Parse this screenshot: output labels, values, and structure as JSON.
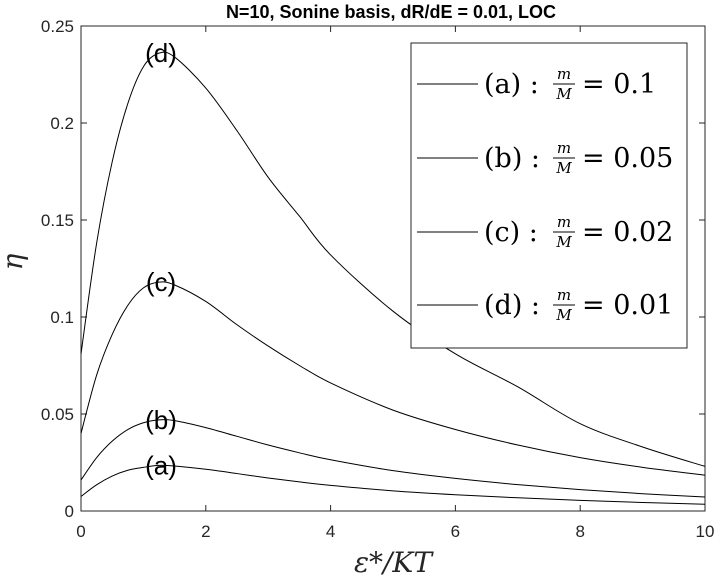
{
  "chart_data": {
    "type": "line",
    "title": "N=10, Sonine basis, dR/dE = 0.01, LOC",
    "xlabel": "ε*/KT",
    "ylabel": "η",
    "xlim": [
      0,
      10
    ],
    "ylim": [
      0,
      0.25
    ],
    "xticks": [
      "0",
      "2",
      "4",
      "6",
      "8",
      "10"
    ],
    "yticks": [
      "0",
      "0.05",
      "0.1",
      "0.15",
      "0.2",
      "0.25"
    ],
    "grid": false,
    "legend_position": "top-right",
    "series": [
      {
        "name": "(a) : m/M = 0.1",
        "label": "(a)",
        "legend_prefix": "(a) :",
        "legend_value": "= 0.1",
        "points": [
          [
            0,
            0.0075
          ],
          [
            0.25,
            0.0135
          ],
          [
            0.5,
            0.018
          ],
          [
            0.75,
            0.021
          ],
          [
            1.0,
            0.0225
          ],
          [
            1.25,
            0.0235
          ],
          [
            1.5,
            0.0232
          ],
          [
            2.0,
            0.0215
          ],
          [
            2.5,
            0.0193
          ],
          [
            3.0,
            0.017
          ],
          [
            3.5,
            0.015
          ],
          [
            4.0,
            0.0132
          ],
          [
            5.0,
            0.0104
          ],
          [
            6.0,
            0.0084
          ],
          [
            7.0,
            0.0068
          ],
          [
            8.0,
            0.0055
          ],
          [
            9.0,
            0.0044
          ],
          [
            10.0,
            0.0035
          ]
        ]
      },
      {
        "name": "(b) : m/M = 0.05",
        "label": "(b)",
        "legend_prefix": "(b) :",
        "legend_value": "= 0.05",
        "points": [
          [
            0,
            0.016
          ],
          [
            0.25,
            0.0275
          ],
          [
            0.5,
            0.036
          ],
          [
            0.75,
            0.042
          ],
          [
            1.0,
            0.0455
          ],
          [
            1.25,
            0.047
          ],
          [
            1.5,
            0.0466
          ],
          [
            2.0,
            0.043
          ],
          [
            2.5,
            0.0385
          ],
          [
            3.0,
            0.034
          ],
          [
            3.5,
            0.03
          ],
          [
            4.0,
            0.0264
          ],
          [
            5.0,
            0.0208
          ],
          [
            6.0,
            0.0168
          ],
          [
            7.0,
            0.0136
          ],
          [
            8.0,
            0.011
          ],
          [
            9.0,
            0.0089
          ],
          [
            10.0,
            0.0072
          ]
        ]
      },
      {
        "name": "(c) : m/M = 0.02",
        "label": "(c)",
        "legend_prefix": "(c) :",
        "legend_value": "= 0.02",
        "points": [
          [
            0,
            0.04
          ],
          [
            0.25,
            0.07
          ],
          [
            0.5,
            0.091
          ],
          [
            0.75,
            0.106
          ],
          [
            1.0,
            0.115
          ],
          [
            1.25,
            0.118
          ],
          [
            1.5,
            0.1165
          ],
          [
            2.0,
            0.108
          ],
          [
            2.5,
            0.096
          ],
          [
            3.0,
            0.085
          ],
          [
            3.5,
            0.075
          ],
          [
            4.0,
            0.066
          ],
          [
            5.0,
            0.052
          ],
          [
            6.0,
            0.042
          ],
          [
            7.0,
            0.034
          ],
          [
            8.0,
            0.0275
          ],
          [
            9.0,
            0.0225
          ],
          [
            10.0,
            0.0185
          ]
        ]
      },
      {
        "name": "(d) : m/M = 0.01",
        "label": "(d)",
        "legend_prefix": "(d) :",
        "legend_value": "= 0.01",
        "points": [
          [
            0,
            0.081
          ],
          [
            0.25,
            0.138
          ],
          [
            0.5,
            0.18
          ],
          [
            0.75,
            0.21
          ],
          [
            1.0,
            0.229
          ],
          [
            1.25,
            0.236
          ],
          [
            1.5,
            0.234
          ],
          [
            2.0,
            0.218
          ],
          [
            2.5,
            0.196
          ],
          [
            3.0,
            0.172
          ],
          [
            3.5,
            0.152
          ],
          [
            4.0,
            0.132
          ],
          [
            5.0,
            0.103
          ],
          [
            6.0,
            0.081
          ],
          [
            7.0,
            0.064
          ],
          [
            8.0,
            0.045
          ],
          [
            9.0,
            0.033
          ],
          [
            10.0,
            0.023
          ]
        ]
      }
    ],
    "legend_fraction": {
      "numerator": "m",
      "denominator": "M"
    }
  }
}
